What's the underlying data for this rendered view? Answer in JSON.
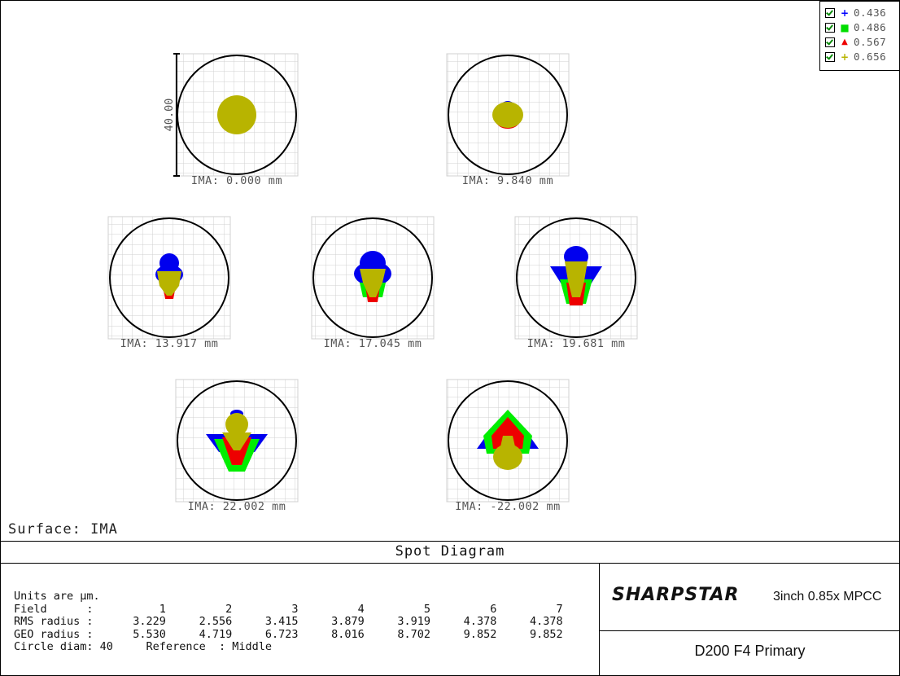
{
  "legend": [
    {
      "symbol": "+",
      "color": "#0000ff",
      "value": "0.436"
    },
    {
      "symbol": "■",
      "color": "#00ee00",
      "value": "0.486"
    },
    {
      "symbol": "▲",
      "color": "#ee0000",
      "value": "0.567"
    },
    {
      "symbol": "+",
      "color": "#b8b400",
      "value": "0.656"
    }
  ],
  "surface_label": "Surface: IMA",
  "plot_title": "Spot Diagram",
  "brand": "SHARPSTAR",
  "brand_sub": "3inch 0.85x MPCC",
  "design": "D200 F4 Primary",
  "table": {
    "units": "Units are µm.",
    "field_row": "Field      :          1         2         3         4         5         6         7",
    "rms_row": "RMS radius :      3.229     2.556     3.415     3.879     3.919     4.378     4.378",
    "geo_row": "GEO radius :      5.530     4.719     6.723     8.016     8.702     9.852     9.852",
    "circle_row": "Circle diam: 40     Reference  : Middle"
  },
  "chart_data": {
    "type": "scatter",
    "title": "Spot Diagram",
    "scale_bar": "40.00",
    "wavelengths": [
      "0.436",
      "0.486",
      "0.567",
      "0.656"
    ],
    "fields": [
      {
        "field": 1,
        "label": "IMA: 0.000 mm",
        "rms": 3.229,
        "geo": 5.53
      },
      {
        "field": 2,
        "label": "IMA: 9.840 mm",
        "rms": 2.556,
        "geo": 4.719
      },
      {
        "field": 3,
        "label": "IMA: 13.917 mm",
        "rms": 3.415,
        "geo": 6.723
      },
      {
        "field": 4,
        "label": "IMA: 17.045 mm",
        "rms": 3.879,
        "geo": 8.016
      },
      {
        "field": 5,
        "label": "IMA: 19.681 mm",
        "rms": 3.919,
        "geo": 8.702
      },
      {
        "field": 6,
        "label": "IMA: 22.002 mm",
        "rms": 4.378,
        "geo": 9.852
      },
      {
        "field": 7,
        "label": "IMA: -22.002 mm",
        "rms": 4.378,
        "geo": 9.852
      }
    ],
    "circle_diam": 40,
    "reference": "Middle"
  }
}
